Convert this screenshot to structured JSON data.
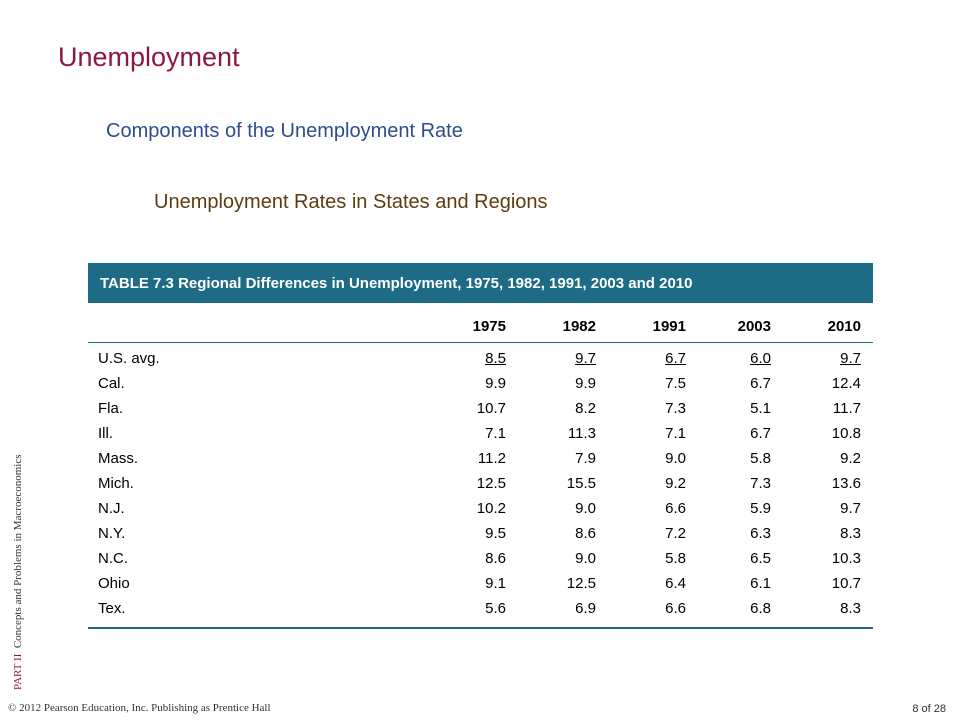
{
  "slide": {
    "title": "Unemployment",
    "subtitle": "Components of the Unemployment Rate",
    "subsubtitle": "Unemployment Rates in States and Regions"
  },
  "sidebar": {
    "part": "PART II",
    "book": "Concepts and Problems in Macroeconomics"
  },
  "footer": {
    "copyright": "© 2012 Pearson Education, Inc. Publishing as Prentice Hall",
    "page": "8 of 28"
  },
  "table": {
    "caption": "TABLE 7.3  Regional Differences in Unemployment, 1975, 1982, 1991, 2003 and 2010",
    "columns": [
      "",
      "1975",
      "1982",
      "1991",
      "2003",
      "2010"
    ],
    "rows": [
      [
        "U.S. avg.",
        "8.5",
        "9.7",
        "6.7",
        "6.0",
        "9.7"
      ],
      [
        "Cal.",
        "9.9",
        "9.9",
        "7.5",
        "6.7",
        "12.4"
      ],
      [
        "Fla.",
        "10.7",
        "8.2",
        "7.3",
        "5.1",
        "11.7"
      ],
      [
        "Ill.",
        "7.1",
        "11.3",
        "7.1",
        "6.7",
        "10.8"
      ],
      [
        "Mass.",
        "11.2",
        "7.9",
        "9.0",
        "5.8",
        "9.2"
      ],
      [
        "Mich.",
        "12.5",
        "15.5",
        "9.2",
        "7.3",
        "13.6"
      ],
      [
        "N.J.",
        "10.2",
        "9.0",
        "6.6",
        "5.9",
        "9.7"
      ],
      [
        "N.Y.",
        "9.5",
        "8.6",
        "7.2",
        "6.3",
        "8.3"
      ],
      [
        "N.C.",
        "8.6",
        "9.0",
        "5.8",
        "6.5",
        "10.3"
      ],
      [
        "Ohio",
        "9.1",
        "12.5",
        "6.4",
        "6.1",
        "10.7"
      ],
      [
        "Tex.",
        "5.6",
        "6.9",
        "6.6",
        "6.8",
        "8.3"
      ]
    ]
  },
  "colors": {
    "title": "#8b1a3a",
    "subtitle": "#2e4c91",
    "subsubtitle": "#5c3d11",
    "table_accent": "#1d6b85"
  }
}
